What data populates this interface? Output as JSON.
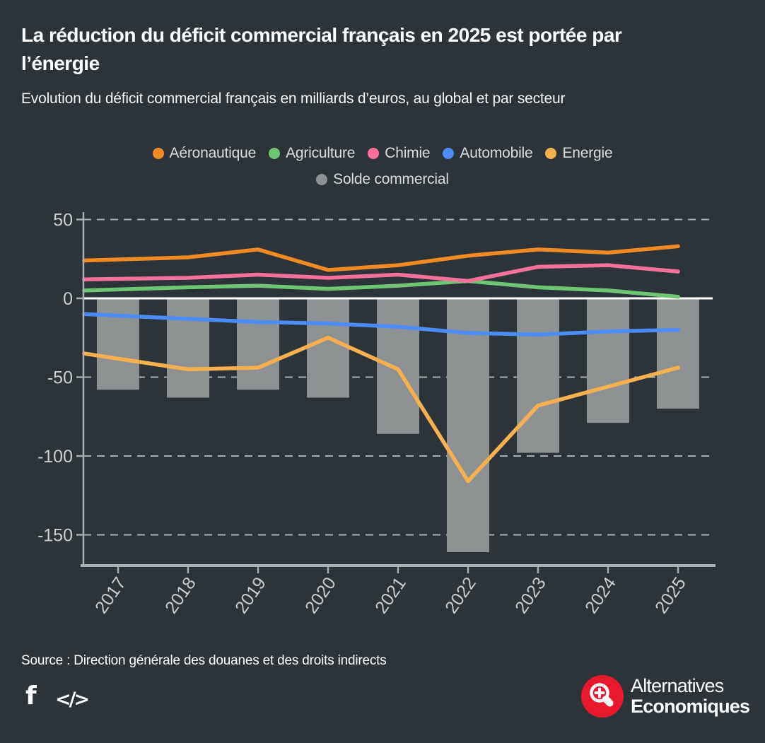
{
  "header": {
    "title": "La réduction du déficit commercial français en 2025 est portée par l’énergie",
    "subtitle": "Evolution du déficit commercial français en milliards d’euros, au global et par secteur"
  },
  "chart_data": {
    "type": "combo-bar-line",
    "categories": [
      "2017",
      "2018",
      "2019",
      "2020",
      "2021",
      "2022",
      "2023",
      "2024",
      "2025"
    ],
    "bar_series": {
      "name": "Solde commercial",
      "color": "#8d9192",
      "values": [
        -58,
        -63,
        -58,
        -63,
        -86,
        -161,
        -98,
        -79,
        -70
      ]
    },
    "line_series": [
      {
        "name": "Aéronautique",
        "color": "#f18a22",
        "values": [
          24,
          26,
          31,
          18,
          21,
          27,
          31,
          29,
          33
        ]
      },
      {
        "name": "Agriculture",
        "color": "#6fc475",
        "values": [
          5,
          7,
          8,
          6,
          8,
          11,
          7,
          5,
          1
        ]
      },
      {
        "name": "Chimie",
        "color": "#f4719c",
        "values": [
          12,
          13,
          15,
          13,
          15,
          11,
          20,
          21,
          17
        ]
      },
      {
        "name": "Automobile",
        "color": "#4b8cf6",
        "values": [
          -10,
          -13,
          -15,
          -16,
          -18,
          -22,
          -23,
          -21,
          -20
        ]
      },
      {
        "name": "Energie",
        "color": "#f6b14e",
        "values": [
          -35,
          -45,
          -44,
          -25,
          -45,
          -116,
          -68,
          -56,
          -44
        ]
      }
    ],
    "y_ticks": [
      50,
      0,
      -50,
      -100,
      -150
    ],
    "ylim": [
      -170,
      57
    ],
    "grid": "horizontal-dashed",
    "zero_line": "solid-white",
    "legend_position": "top-center-two-rows",
    "colors": {
      "grid": "#c8cdcf",
      "axis": "#a9b0b3",
      "tick_label": "#c9cdce",
      "zero_line": "#ffffff"
    }
  },
  "source": {
    "label": "Source : Direction générale des douanes et des droits indirects"
  },
  "footer": {
    "facebook_glyph": "f",
    "embed_glyph": "</>",
    "brand": {
      "line1": "Alternatives",
      "line2": "Economiques",
      "circle_color": "#e8182d",
      "magnifier_icon": "zoom-plus-icon"
    }
  }
}
